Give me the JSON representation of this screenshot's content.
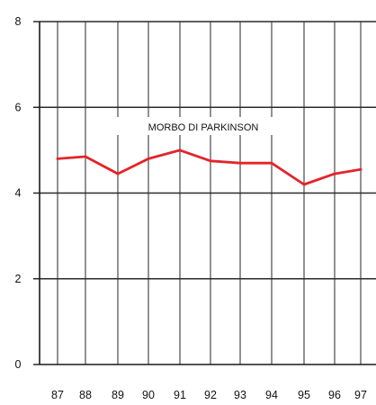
{
  "chart_data": {
    "type": "line",
    "title": "MORBO DI PARKINSON",
    "xlabel": "",
    "ylabel": "",
    "categories": [
      "87",
      "88",
      "89",
      "90",
      "91",
      "92",
      "93",
      "94",
      "95",
      "96",
      "97"
    ],
    "series": [
      {
        "values": [
          4.8,
          4.85,
          4.45,
          4.8,
          5.0,
          4.75,
          4.7,
          4.7,
          4.2,
          4.45,
          4.55
        ],
        "color": "#e3242b"
      }
    ],
    "ylim": [
      0,
      8
    ],
    "yticks": [
      0,
      2,
      4,
      6,
      8
    ],
    "grid": true,
    "legend": "none"
  }
}
